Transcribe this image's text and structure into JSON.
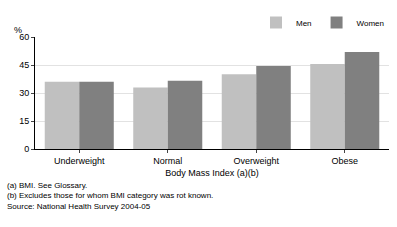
{
  "chart_data": {
    "type": "bar",
    "x_label": "Body Mass Index (a)(b)",
    "y_label": "%",
    "categories": [
      "Underweight",
      "Normal",
      "Overweight",
      "Obese"
    ],
    "series": [
      {
        "name": "Men",
        "color": "#c0c0c0",
        "values": [
          36,
          33,
          40,
          45.5
        ]
      },
      {
        "name": "Women",
        "color": "#808080",
        "values": [
          36,
          36.5,
          44.5,
          52
        ]
      }
    ],
    "ylim": [
      0,
      60
    ],
    "yticks": [
      0,
      15,
      30,
      45,
      60
    ],
    "grid": true,
    "legend": "upper right",
    "annotations": [
      "(a) BMI. See Glossary.",
      "(b) Excludes those for whom BMI category was rot known.",
      "Source: National Health Survey 2004-05"
    ]
  }
}
